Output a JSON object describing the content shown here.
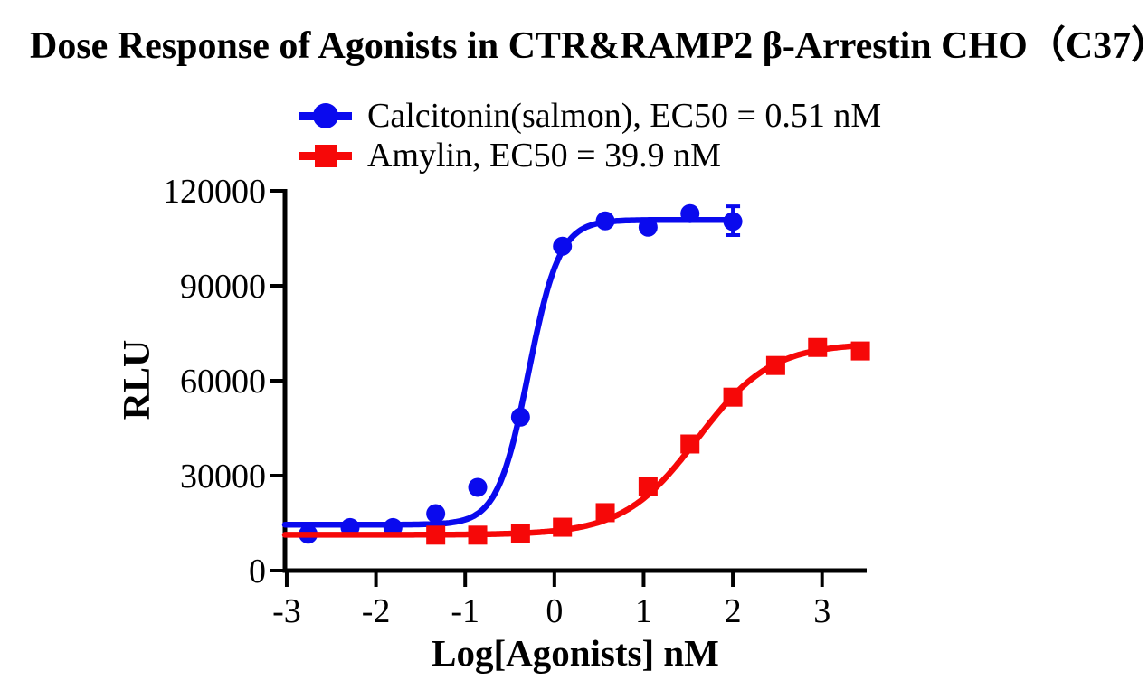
{
  "title": "Dose Response of Agonists in CTR&RAMP2 β-Arrestin CHO（C37）",
  "legend": [
    {
      "label": "Calcitonin(salmon), EC50 = 0.51 nM",
      "marker": "circle",
      "color": "#0a0aee"
    },
    {
      "label": "Amylin, EC50 = 39.9 nM",
      "marker": "square",
      "color": "#f60808"
    }
  ],
  "axis_color": "#000000",
  "chart_data": {
    "type": "line",
    "title": "Dose Response of Agonists in CTR&RAMP2 β-Arrestin CHO（C37）",
    "xlabel": "Log[Agonists] nM",
    "ylabel": "RLU",
    "xlim": [
      -3.02,
      3.5
    ],
    "ylim": [
      0,
      120000
    ],
    "x_ticks": [
      -3,
      -2,
      -1,
      0,
      1,
      2,
      3
    ],
    "y_ticks": [
      0,
      30000,
      60000,
      90000,
      120000
    ],
    "grid": false,
    "legend_position": "top",
    "series": [
      {
        "name": "Calcitonin(salmon), EC50 = 0.51 nM",
        "ec50_nM": 0.51,
        "color": "#0a0aee",
        "marker": "circle",
        "x": [
          -2.76,
          -2.29,
          -1.81,
          -1.33,
          -0.86,
          -0.38,
          0.09,
          0.57,
          1.05,
          1.52,
          2.0
        ],
        "y": [
          11500,
          13600,
          13600,
          18000,
          26300,
          48500,
          102500,
          110500,
          108500,
          112800,
          110300
        ],
        "fit": {
          "bottom": 14500,
          "top": 110800,
          "logEC50": -0.29,
          "hill": 2.5,
          "range": [
            -3.02,
            2.0
          ]
        },
        "error_bars": [
          {
            "x": 2.0,
            "y": 110300,
            "plus": 4800,
            "minus": 4300
          }
        ]
      },
      {
        "name": "Amylin, EC50 = 39.9 nM",
        "ec50_nM": 39.9,
        "color": "#f60808",
        "marker": "square",
        "x": [
          -1.33,
          -0.86,
          -0.38,
          0.09,
          0.57,
          1.05,
          1.52,
          2.0,
          2.48,
          2.95,
          3.43
        ],
        "y": [
          11200,
          11200,
          11600,
          13700,
          18300,
          26600,
          40000,
          54800,
          64800,
          70500,
          69400
        ],
        "fit": {
          "bottom": 11300,
          "top": 71800,
          "logEC50": 1.6,
          "hill": 1.05,
          "range": [
            -3.02,
            3.45
          ]
        },
        "error_bars": []
      }
    ]
  }
}
